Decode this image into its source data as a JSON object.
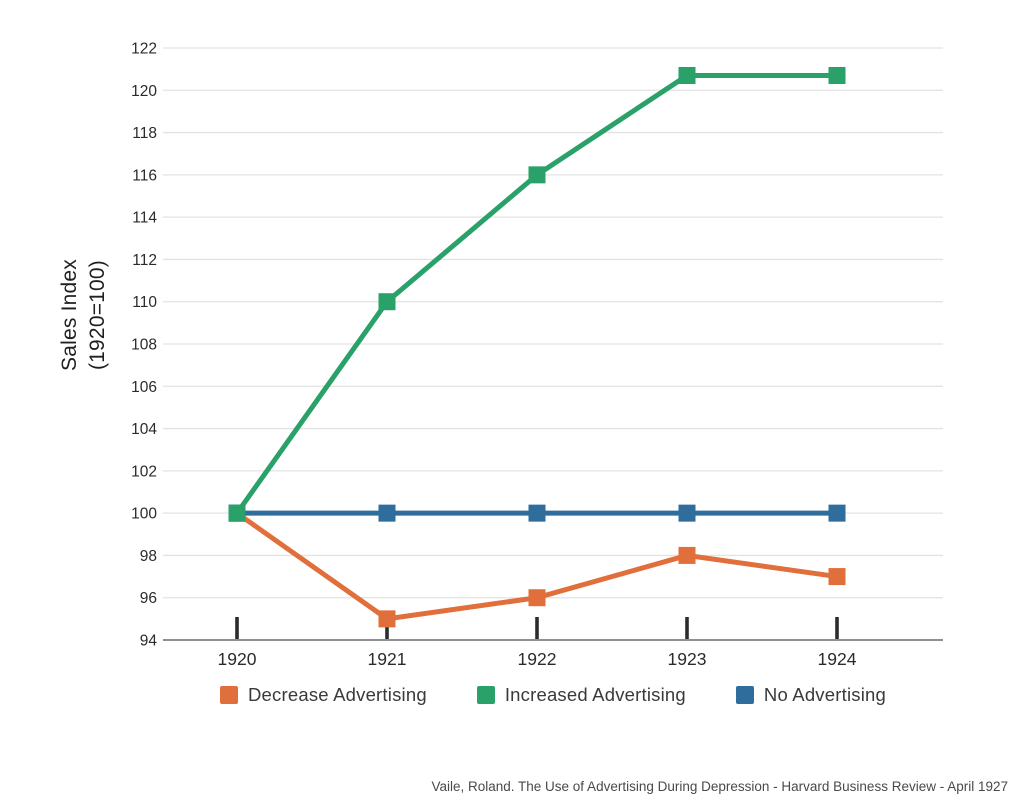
{
  "chart_data": {
    "type": "line",
    "title": "",
    "xlabel": "",
    "ylabel": "Sales Index (1920=100)",
    "ylabel_lines": [
      "Sales Index",
      "(1920=100)"
    ],
    "categories": [
      "1920",
      "1921",
      "1922",
      "1923",
      "1924"
    ],
    "series": [
      {
        "name": "Decrease Advertising",
        "color": "#E06F3B",
        "values": [
          100,
          95,
          96,
          98,
          97
        ]
      },
      {
        "name": "Increased Advertising",
        "color": "#2AA169",
        "values": [
          100,
          110,
          116,
          120.7,
          120.7
        ]
      },
      {
        "name": "No Advertising",
        "color": "#2E6D9C",
        "values": [
          100,
          100,
          100,
          100,
          100
        ]
      }
    ],
    "draw_order": [
      0,
      2,
      1
    ],
    "ylim": [
      94,
      122
    ],
    "ytick_step": 2,
    "yticks": [
      94,
      96,
      98,
      100,
      102,
      104,
      106,
      108,
      110,
      112,
      114,
      116,
      118,
      120,
      122
    ],
    "grid": true,
    "marker": "square",
    "legend_position": "bottom"
  },
  "colors": {
    "gridline": "#e3e3e3",
    "axis_line": "#8f8f8f",
    "tick_mark": "#2b2b2b",
    "tick_label": "#2b2b2b"
  },
  "citation": "Vaile, Roland. The Use of Advertising During Depression - Harvard Business Review - April 1927"
}
